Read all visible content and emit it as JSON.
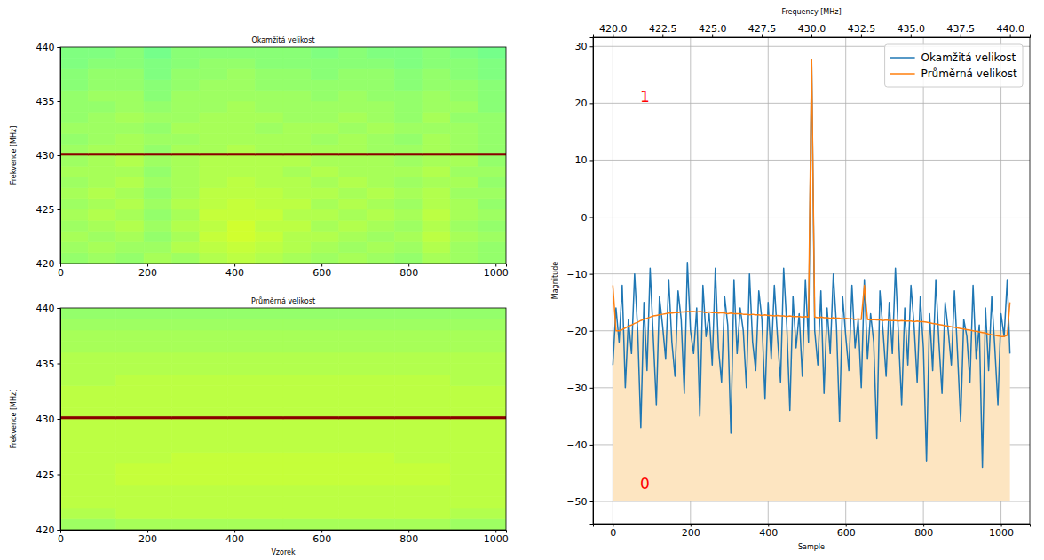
{
  "chart_data": [
    {
      "type": "heatmap",
      "title": "Okamžitá velikost",
      "y_label": "Frekvence [MHz]",
      "color": "jet",
      "xlim": [
        0,
        1024
      ],
      "ylim": [
        420,
        440
      ],
      "xticks": [
        0,
        200,
        400,
        600,
        800,
        1000
      ],
      "yticks": [
        420,
        425,
        430,
        435,
        440
      ],
      "zlim": [
        -74,
        28
      ],
      "x_edges": [
        0,
        64,
        128,
        192,
        256,
        320,
        384,
        448,
        512,
        576,
        640,
        704,
        768,
        832,
        896,
        960,
        1024
      ],
      "y_edges": [
        420,
        421,
        422,
        423,
        424,
        425,
        426,
        427,
        428,
        429,
        430,
        430.25,
        431,
        432,
        433,
        434,
        435,
        436,
        437,
        438,
        439,
        440
      ],
      "cells": [
        [
          -21,
          -20,
          -21,
          -19,
          -20,
          -18,
          -17,
          -18,
          -19,
          -20,
          -19,
          -20,
          -21,
          -19,
          -20,
          -21
        ],
        [
          -20,
          -19,
          -20,
          -20,
          -18,
          -17,
          -16,
          -17,
          -18,
          -19,
          -20,
          -19,
          -20,
          -18,
          -20,
          -21
        ],
        [
          -19,
          -20,
          -19,
          -21,
          -19,
          -16,
          -15,
          -16,
          -18,
          -18,
          -19,
          -20,
          -19,
          -17,
          -19,
          -20
        ],
        [
          -20,
          -19,
          -18,
          -20,
          -18,
          -17,
          -15,
          -17,
          -17,
          -19,
          -18,
          -19,
          -20,
          -18,
          -20,
          -21
        ],
        [
          -19,
          -18,
          -19,
          -21,
          -19,
          -16,
          -16,
          -16,
          -18,
          -18,
          -19,
          -18,
          -19,
          -17,
          -19,
          -20
        ],
        [
          -20,
          -19,
          -18,
          -20,
          -18,
          -17,
          -16,
          -17,
          -17,
          -19,
          -18,
          -19,
          -20,
          -18,
          -19,
          -21
        ],
        [
          -19,
          -18,
          -19,
          -21,
          -19,
          -17,
          -17,
          -17,
          -18,
          -18,
          -19,
          -18,
          -19,
          -18,
          -20,
          -20
        ],
        [
          -20,
          -19,
          -18,
          -20,
          -19,
          -18,
          -17,
          -18,
          -18,
          -19,
          -18,
          -19,
          -20,
          -19,
          -19,
          -21
        ],
        [
          -19,
          -19,
          -19,
          -21,
          -19,
          -18,
          -18,
          -18,
          -19,
          -18,
          -19,
          -19,
          -19,
          -18,
          -20,
          -20
        ],
        [
          -20,
          -19,
          -18,
          -20,
          -19,
          -18,
          -18,
          -18,
          -18,
          -19,
          -19,
          -19,
          -20,
          -19,
          -19,
          -21
        ],
        [
          27,
          27,
          27,
          27,
          27,
          27,
          27,
          27,
          27,
          27,
          27,
          27,
          27,
          27,
          27,
          27
        ],
        [
          -20,
          -19,
          -19,
          -21,
          -19,
          -19,
          -18,
          -19,
          -19,
          -19,
          -19,
          -20,
          -20,
          -19,
          -20,
          -21
        ],
        [
          -21,
          -20,
          -19,
          -20,
          -20,
          -19,
          -19,
          -19,
          -19,
          -20,
          -19,
          -20,
          -21,
          -19,
          -20,
          -21
        ],
        [
          -20,
          -20,
          -20,
          -21,
          -19,
          -19,
          -19,
          -20,
          -19,
          -19,
          -20,
          -19,
          -20,
          -20,
          -20,
          -21
        ],
        [
          -21,
          -20,
          -19,
          -20,
          -20,
          -19,
          -19,
          -19,
          -20,
          -20,
          -19,
          -20,
          -21,
          -19,
          -21,
          -21
        ],
        [
          -21,
          -21,
          -20,
          -21,
          -20,
          -20,
          -19,
          -20,
          -20,
          -20,
          -20,
          -20,
          -21,
          -20,
          -20,
          -22
        ],
        [
          -21,
          -20,
          -20,
          -22,
          -20,
          -20,
          -20,
          -20,
          -20,
          -21,
          -20,
          -21,
          -21,
          -20,
          -21,
          -22
        ],
        [
          -22,
          -21,
          -21,
          -22,
          -21,
          -20,
          -20,
          -21,
          -21,
          -21,
          -21,
          -21,
          -22,
          -21,
          -21,
          -22
        ],
        [
          -22,
          -21,
          -21,
          -23,
          -21,
          -21,
          -20,
          -21,
          -21,
          -22,
          -21,
          -21,
          -22,
          -21,
          -22,
          -23
        ],
        [
          -23,
          -22,
          -22,
          -23,
          -22,
          -21,
          -21,
          -22,
          -22,
          -22,
          -22,
          -22,
          -23,
          -22,
          -22,
          -23
        ],
        [
          -23,
          -23,
          -22,
          -24,
          -22,
          -22,
          -22,
          -22,
          -22,
          -23,
          -22,
          -23,
          -23,
          -22,
          -23,
          -24
        ]
      ]
    },
    {
      "type": "heatmap",
      "title": "Průměrná velikost",
      "y_label": "Frekvence [MHz]",
      "x_label": "Vzorek",
      "color": "jet",
      "xlim": [
        0,
        1024
      ],
      "ylim": [
        420,
        440
      ],
      "xticks": [
        0,
        200,
        400,
        600,
        800,
        1000
      ],
      "yticks": [
        420,
        425,
        430,
        435,
        440
      ],
      "zlim": [
        -74,
        28
      ],
      "x_edges": [
        0,
        128,
        256,
        384,
        512,
        640,
        768,
        896,
        1024
      ],
      "y_edges": [
        420,
        421,
        422,
        423,
        424,
        425,
        426,
        427,
        428,
        429,
        430,
        430.25,
        431,
        432,
        433,
        434,
        435,
        436,
        437,
        438,
        439,
        440
      ],
      "cells": [
        [
          -20,
          -19,
          -19,
          -19,
          -19,
          -19,
          -19,
          -20
        ],
        [
          -18,
          -17,
          -17,
          -17,
          -17,
          -17,
          -17,
          -18
        ],
        [
          -17,
          -17,
          -17,
          -17,
          -17,
          -17,
          -17,
          -17
        ],
        [
          -17,
          -17,
          -17,
          -17,
          -17,
          -17,
          -17,
          -17
        ],
        [
          -17,
          -16,
          -16,
          -16,
          -16,
          -16,
          -16,
          -17
        ],
        [
          -17,
          -16,
          -16,
          -16,
          -16,
          -16,
          -16,
          -17
        ],
        [
          -17,
          -17,
          -16,
          -16,
          -16,
          -16,
          -17,
          -17
        ],
        [
          -17,
          -17,
          -17,
          -17,
          -17,
          -17,
          -17,
          -17
        ],
        [
          -17,
          -17,
          -17,
          -17,
          -17,
          -17,
          -17,
          -17
        ],
        [
          -17,
          -17,
          -17,
          -17,
          -17,
          -17,
          -17,
          -17
        ],
        [
          27,
          27,
          27,
          27,
          27,
          27,
          27,
          27
        ],
        [
          -17,
          -17,
          -17,
          -17,
          -17,
          -17,
          -17,
          -17
        ],
        [
          -17,
          -17,
          -17,
          -17,
          -17,
          -17,
          -17,
          -17
        ],
        [
          -17,
          -17,
          -17,
          -17,
          -17,
          -17,
          -17,
          -17
        ],
        [
          -18,
          -17,
          -17,
          -17,
          -17,
          -17,
          -17,
          -18
        ],
        [
          -18,
          -18,
          -18,
          -18,
          -18,
          -18,
          -18,
          -18
        ],
        [
          -18,
          -18,
          -18,
          -18,
          -18,
          -18,
          -18,
          -18
        ],
        [
          -19,
          -19,
          -19,
          -19,
          -19,
          -19,
          -19,
          -19
        ],
        [
          -19,
          -19,
          -19,
          -19,
          -19,
          -19,
          -19,
          -19
        ],
        [
          -20,
          -20,
          -20,
          -20,
          -20,
          -20,
          -20,
          -20
        ],
        [
          -21,
          -21,
          -21,
          -21,
          -21,
          -21,
          -21,
          -21
        ]
      ]
    },
    {
      "type": "line",
      "x_label": "Sample",
      "y_label": "Magnitude",
      "x2_label": "Frequency [MHz]",
      "xlim": [
        -51.15,
        1074.15
      ],
      "ylim": [
        -53.9,
        31.6
      ],
      "xticks": [
        0,
        200,
        400,
        600,
        800,
        1000
      ],
      "yticks": [
        {
          "value": -50,
          "label": "−50"
        },
        {
          "value": -40,
          "label": "−40"
        },
        {
          "value": -30,
          "label": "−30"
        },
        {
          "value": -20,
          "label": "−20"
        },
        {
          "value": -10,
          "label": "−10"
        },
        0,
        10,
        20,
        30
      ],
      "x2lim": [
        419.0,
        441.0
      ],
      "x2ticks": [
        {
          "value": 420,
          "label": "420.0"
        },
        422.5,
        {
          "value": 425,
          "label": "425.0"
        },
        427.5,
        {
          "value": 430,
          "label": "430.0"
        },
        432.5,
        {
          "value": 435,
          "label": "435.0"
        },
        437.5,
        {
          "value": 440,
          "label": "440.0"
        }
      ],
      "grid": true,
      "legend": "upper right",
      "x": [
        0,
        8,
        16,
        24,
        32,
        40,
        48,
        56,
        64,
        72,
        80,
        88,
        96,
        104,
        112,
        120,
        128,
        136,
        144,
        152,
        160,
        168,
        176,
        184,
        192,
        200,
        208,
        216,
        224,
        232,
        240,
        248,
        256,
        264,
        272,
        280,
        288,
        296,
        304,
        312,
        320,
        328,
        336,
        344,
        352,
        360,
        368,
        376,
        384,
        392,
        400,
        408,
        416,
        424,
        432,
        440,
        448,
        456,
        464,
        472,
        480,
        488,
        496,
        504,
        512,
        520,
        528,
        536,
        544,
        552,
        560,
        568,
        576,
        584,
        592,
        600,
        608,
        616,
        624,
        632,
        640,
        648,
        656,
        664,
        672,
        680,
        688,
        696,
        704,
        712,
        720,
        728,
        736,
        744,
        752,
        760,
        768,
        776,
        784,
        792,
        800,
        808,
        816,
        824,
        832,
        840,
        848,
        856,
        864,
        872,
        880,
        888,
        896,
        904,
        912,
        920,
        928,
        936,
        944,
        952,
        960,
        968,
        976,
        984,
        992,
        1000,
        1008,
        1016,
        1023
      ],
      "series": [
        {
          "name": "Okamžitá velikost",
          "color": "#1f77b4",
          "values": [
            -26,
            -16,
            -22,
            -12,
            -30,
            -18,
            -24,
            -10,
            -20,
            -37,
            -15,
            -27,
            -9,
            -21,
            -33,
            -14,
            -19,
            -25,
            -11,
            -22,
            -28,
            -13,
            -18,
            -31,
            -8,
            -20,
            -24,
            -16,
            -35,
            -12,
            -21,
            -17,
            -26,
            -9,
            -23,
            -29,
            -14,
            -19,
            -38,
            -11,
            -24,
            -16,
            -20,
            -30,
            -10,
            -22,
            -27,
            -13,
            -18,
            -32,
            -15,
            -25,
            -12,
            -21,
            -29,
            -9,
            -19,
            -34,
            -14,
            -23,
            -17,
            -28,
            -11,
            -22,
            27.7,
            -20,
            -26,
            -13,
            -31,
            -16,
            -24,
            -10,
            -19,
            -36,
            -14,
            -21,
            -27,
            -12,
            -23,
            -18,
            -30,
            -11,
            -25,
            -17,
            -22,
            -39,
            -13,
            -20,
            -28,
            -15,
            -24,
            -9,
            -21,
            -33,
            -16,
            -26,
            -12,
            -19,
            -29,
            -14,
            -23,
            -43,
            -17,
            -27,
            -11,
            -22,
            -31,
            -15,
            -20,
            -26,
            -13,
            -24,
            -36,
            -18,
            -21,
            -29,
            -12,
            -25,
            -19,
            -44,
            -16,
            -27,
            -14,
            -23,
            -33,
            -17,
            -21,
            -11,
            -24
          ]
        },
        {
          "name": "Průměrná velikost",
          "color": "#ff7f0e",
          "values": [
            -12,
            -20,
            -20,
            -19.8,
            -19.5,
            -19.2,
            -19,
            -18.7,
            -18.5,
            -18.2,
            -18,
            -17.8,
            -17.6,
            -17.4,
            -17.3,
            -17.2,
            -17.1,
            -17,
            -16.9,
            -16.9,
            -16.8,
            -16.8,
            -16.7,
            -16.7,
            -16.6,
            -16.6,
            -16.6,
            -16.7,
            -16.6,
            -16.7,
            -16.8,
            -16.7,
            -16.8,
            -16.8,
            -16.9,
            -16.8,
            -16.9,
            -17,
            -16.9,
            -17,
            -17,
            -17,
            -17.1,
            -17.1,
            -17.2,
            -17.1,
            -17.2,
            -17.2,
            -17.3,
            -17.2,
            -17.3,
            -17.3,
            -17.4,
            -17.3,
            -17.4,
            -17.4,
            -17.5,
            -17.4,
            -17.5,
            -17.5,
            -17.5,
            -17.6,
            -17.5,
            -17.6,
            27.7,
            -17.6,
            -17.7,
            -17.6,
            -17.7,
            -17.7,
            -17.8,
            -17.7,
            -17.8,
            -17.8,
            -17.9,
            -17.8,
            -17.9,
            -17.9,
            -18,
            -17.9,
            -18,
            -12,
            -18,
            -18.1,
            -18,
            -18.1,
            -18.1,
            -18.2,
            -18.1,
            -18.2,
            -18.2,
            -18.2,
            -18.3,
            -18.2,
            -18.3,
            -18.3,
            -18.3,
            -18.4,
            -18.3,
            -18.4,
            -18.4,
            -18.5,
            -18.6,
            -18.7,
            -18.8,
            -18.9,
            -19,
            -19.1,
            -19.2,
            -19.3,
            -19.4,
            -19.5,
            -19.6,
            -19.7,
            -19.8,
            -19.9,
            -20,
            -20.1,
            -20.2,
            -20.3,
            -20.4,
            -20.6,
            -20.7,
            -20.8,
            -20.9,
            -21,
            -21,
            -20.8,
            -15
          ]
        }
      ],
      "shaded_region": {
        "x": [
          0,
          1023
        ],
        "y": [
          -50,
          -20
        ],
        "color": "#fde5c1"
      },
      "annotations": [
        {
          "text": "1",
          "x": 70,
          "y": 21,
          "color": "#ff0000"
        },
        {
          "text": "0",
          "x": 70,
          "y": -47,
          "color": "#ff0000"
        }
      ]
    }
  ]
}
